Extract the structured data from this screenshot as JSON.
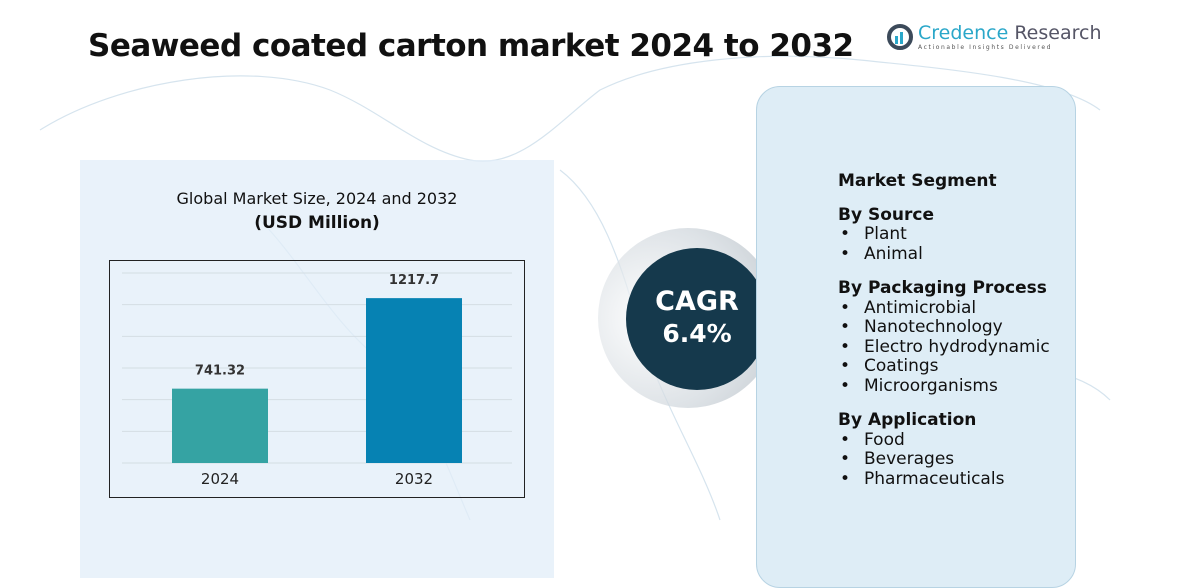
{
  "title": "Seaweed coated carton market 2024  to 2032",
  "logo": {
    "name_a": "Credence",
    "name_b": "Research",
    "tagline": "Actionable Insights Delivered"
  },
  "chart_data": {
    "type": "bar",
    "title": "Global Market Size, 2024 and 2032",
    "subtitle": "(USD Million)",
    "categories": [
      "2024",
      "2032"
    ],
    "values": [
      741.32,
      1217.7
    ],
    "labels": [
      "741.32",
      "1217.7"
    ],
    "colors": [
      "#35a3a3",
      "#0682b3"
    ],
    "ylim": [
      350,
      1350
    ],
    "grid": true
  },
  "cagr": {
    "label": "CAGR",
    "value": "6.4%"
  },
  "segments": {
    "heading": "Market Segment",
    "groups": [
      {
        "title": "By Source",
        "items": [
          "Plant",
          "Animal"
        ]
      },
      {
        "title": "By Packaging Process",
        "items": [
          "Antimicrobial",
          "Nanotechnology",
          "Electro hydrodynamic",
          "Coatings",
          "Microorganisms"
        ]
      },
      {
        "title": "By Application",
        "items": [
          "Food",
          "Beverages",
          "Pharmaceuticals"
        ]
      }
    ]
  }
}
